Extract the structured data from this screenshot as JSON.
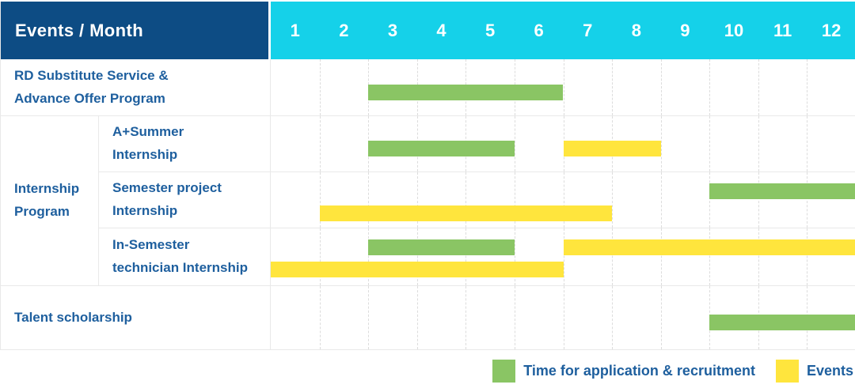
{
  "header": {
    "title": "Events / Month",
    "months": [
      "1",
      "2",
      "3",
      "4",
      "5",
      "6",
      "7",
      "8",
      "9",
      "10",
      "11",
      "12"
    ]
  },
  "colors": {
    "header_bg": "#0d4c84",
    "month_header_bg": "#15d1e9",
    "green": "#8ac564",
    "yellow": "#ffe53d",
    "label_text": "#1e5f9e"
  },
  "legend": [
    {
      "color": "green",
      "label": "Time for application & recruitment"
    },
    {
      "color": "yellow",
      "label": "Events"
    }
  ],
  "chart_data": {
    "type": "gantt",
    "title": "Events / Month",
    "x_axis": {
      "label": "Month",
      "ticks": [
        1,
        2,
        3,
        4,
        5,
        6,
        7,
        8,
        9,
        10,
        11,
        12
      ],
      "range": [
        1,
        12
      ]
    },
    "grid": "vertical-dashed",
    "legend_position": "bottom-right",
    "group_label": "Internship Program",
    "rows": [
      {
        "group": null,
        "label": "RD Substitute Service &\nAdvance Offer Program",
        "bars": [
          {
            "type": "green",
            "start": 3,
            "end": 6,
            "line": "single"
          }
        ]
      },
      {
        "group": "Internship Program",
        "label": "A+Summer\nInternship",
        "bars": [
          {
            "type": "green",
            "start": 3,
            "end": 5,
            "line": "single"
          },
          {
            "type": "yellow",
            "start": 7,
            "end": 8,
            "line": "single"
          }
        ]
      },
      {
        "group": "Internship Program",
        "label": "Semester project\nInternship",
        "bars": [
          {
            "type": "green",
            "start": 10,
            "end": 12,
            "line": "upper"
          },
          {
            "type": "yellow",
            "start": 2,
            "end": 7,
            "line": "lower"
          }
        ]
      },
      {
        "group": "Internship Program",
        "label": "In-Semester\ntechnician Internship",
        "bars": [
          {
            "type": "green",
            "start": 3,
            "end": 5,
            "line": "upper"
          },
          {
            "type": "yellow",
            "start": 7,
            "end": 12,
            "line": "upper"
          },
          {
            "type": "yellow",
            "start": 1,
            "end": 6,
            "line": "lower"
          }
        ]
      },
      {
        "group": null,
        "label": "Talent scholarship",
        "bars": [
          {
            "type": "green",
            "start": 10,
            "end": 12,
            "line": "single"
          }
        ]
      }
    ]
  }
}
